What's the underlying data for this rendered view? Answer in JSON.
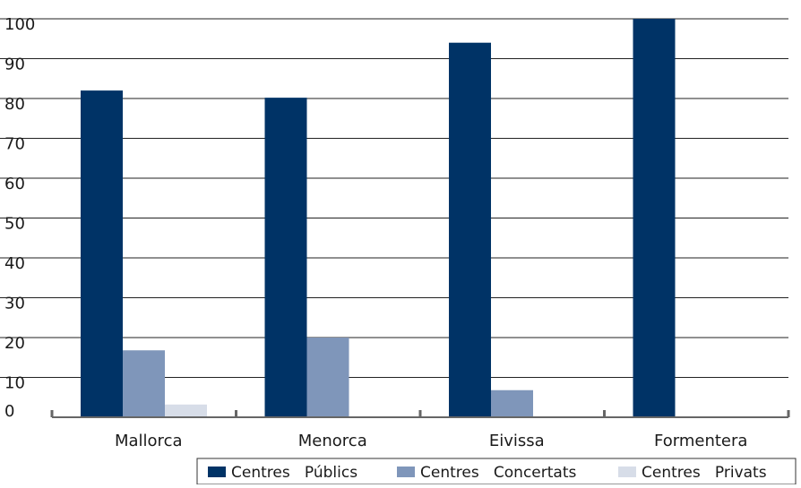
{
  "chart_data": {
    "type": "bar",
    "title": "",
    "xlabel": "",
    "ylabel": "",
    "categories": [
      "Mallorca",
      "Menorca",
      "Eivissa",
      "Formentera"
    ],
    "series": [
      {
        "name": "Centres   Públics",
        "color": "#003366",
        "values": [
          82,
          80.2,
          94,
          100
        ]
      },
      {
        "name": "Centres   Concertats",
        "color": "#7f96ba",
        "values": [
          16.8,
          20,
          6.8,
          0
        ]
      },
      {
        "name": "Centres   Privats",
        "color": "#d7dde8",
        "values": [
          3.2,
          0,
          0,
          0
        ]
      }
    ],
    "ylim": [
      0,
      100
    ],
    "yticks": [
      "0",
      "10",
      "20",
      "30",
      "40",
      "50",
      "60",
      "70",
      "80",
      "90",
      "100"
    ],
    "grid": true,
    "legend_position": "bottom-right"
  }
}
